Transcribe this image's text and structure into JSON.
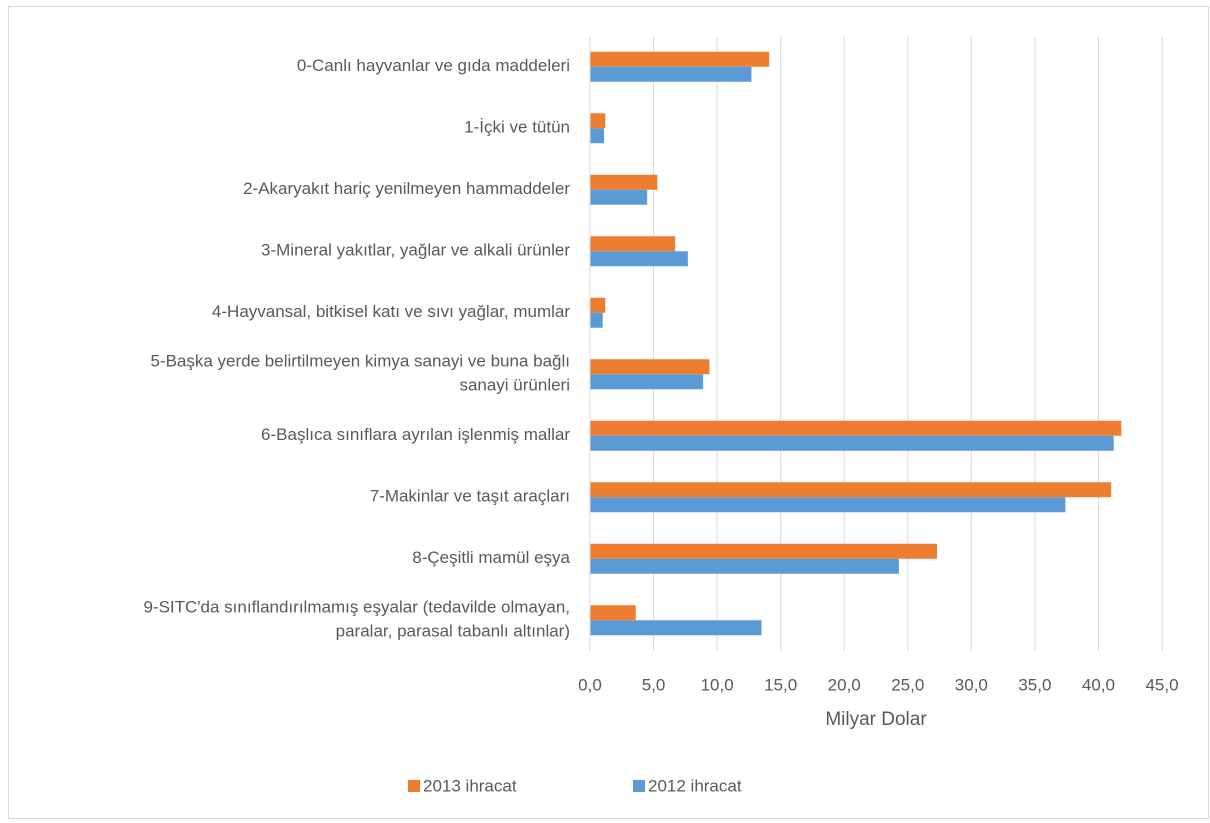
{
  "chart_data": {
    "type": "hbar",
    "xlabel": "Milyar Dolar",
    "categories": [
      "0-Canlı hayvanlar ve gıda maddeleri",
      "1-İçki ve tütün",
      "2-Akaryakıt hariç yenilmeyen hammaddeler",
      "3-Mineral yakıtlar, yağlar ve alkali ürünler",
      "4-Hayvansal, bitkisel katı ve sıvı yağlar, mumlar",
      "5-Başka yerde belirtilmeyen kimya sanayi ve buna bağlı sanayi ürünleri",
      "6-Başlıca sınıflara ayrılan işlenmiş mallar",
      "7-Makinlar ve taşıt araçları",
      "8-Çeşitli mamül eşya",
      "9-SITC'da sınıflandırılmamış eşyalar (tedavilde olmayan, paralar, parasal tabanlı altınlar)"
    ],
    "series": [
      {
        "name": "2013 ihracat",
        "color": "#ed7d31",
        "values": [
          14.1,
          1.2,
          5.3,
          6.7,
          1.2,
          9.4,
          41.8,
          41.0,
          27.3,
          3.6
        ]
      },
      {
        "name": "2012 ihracat",
        "color": "#5b9bd5",
        "values": [
          12.7,
          1.1,
          4.5,
          7.7,
          1.0,
          8.9,
          41.2,
          37.4,
          24.3,
          13.5
        ]
      }
    ],
    "xlim": [
      0,
      45
    ],
    "xticks": [
      {
        "value": 0,
        "label": "0,0"
      },
      {
        "value": 5,
        "label": "5,0"
      },
      {
        "value": 10,
        "label": "10,0"
      },
      {
        "value": 15,
        "label": "15,0"
      },
      {
        "value": 20,
        "label": "20,0"
      },
      {
        "value": 25,
        "label": "25,0"
      },
      {
        "value": 30,
        "label": "30,0"
      },
      {
        "value": 35,
        "label": "35,0"
      },
      {
        "value": 40,
        "label": "40,0"
      },
      {
        "value": 45,
        "label": "45,0"
      }
    ],
    "grid": true,
    "legend": "bottom"
  }
}
